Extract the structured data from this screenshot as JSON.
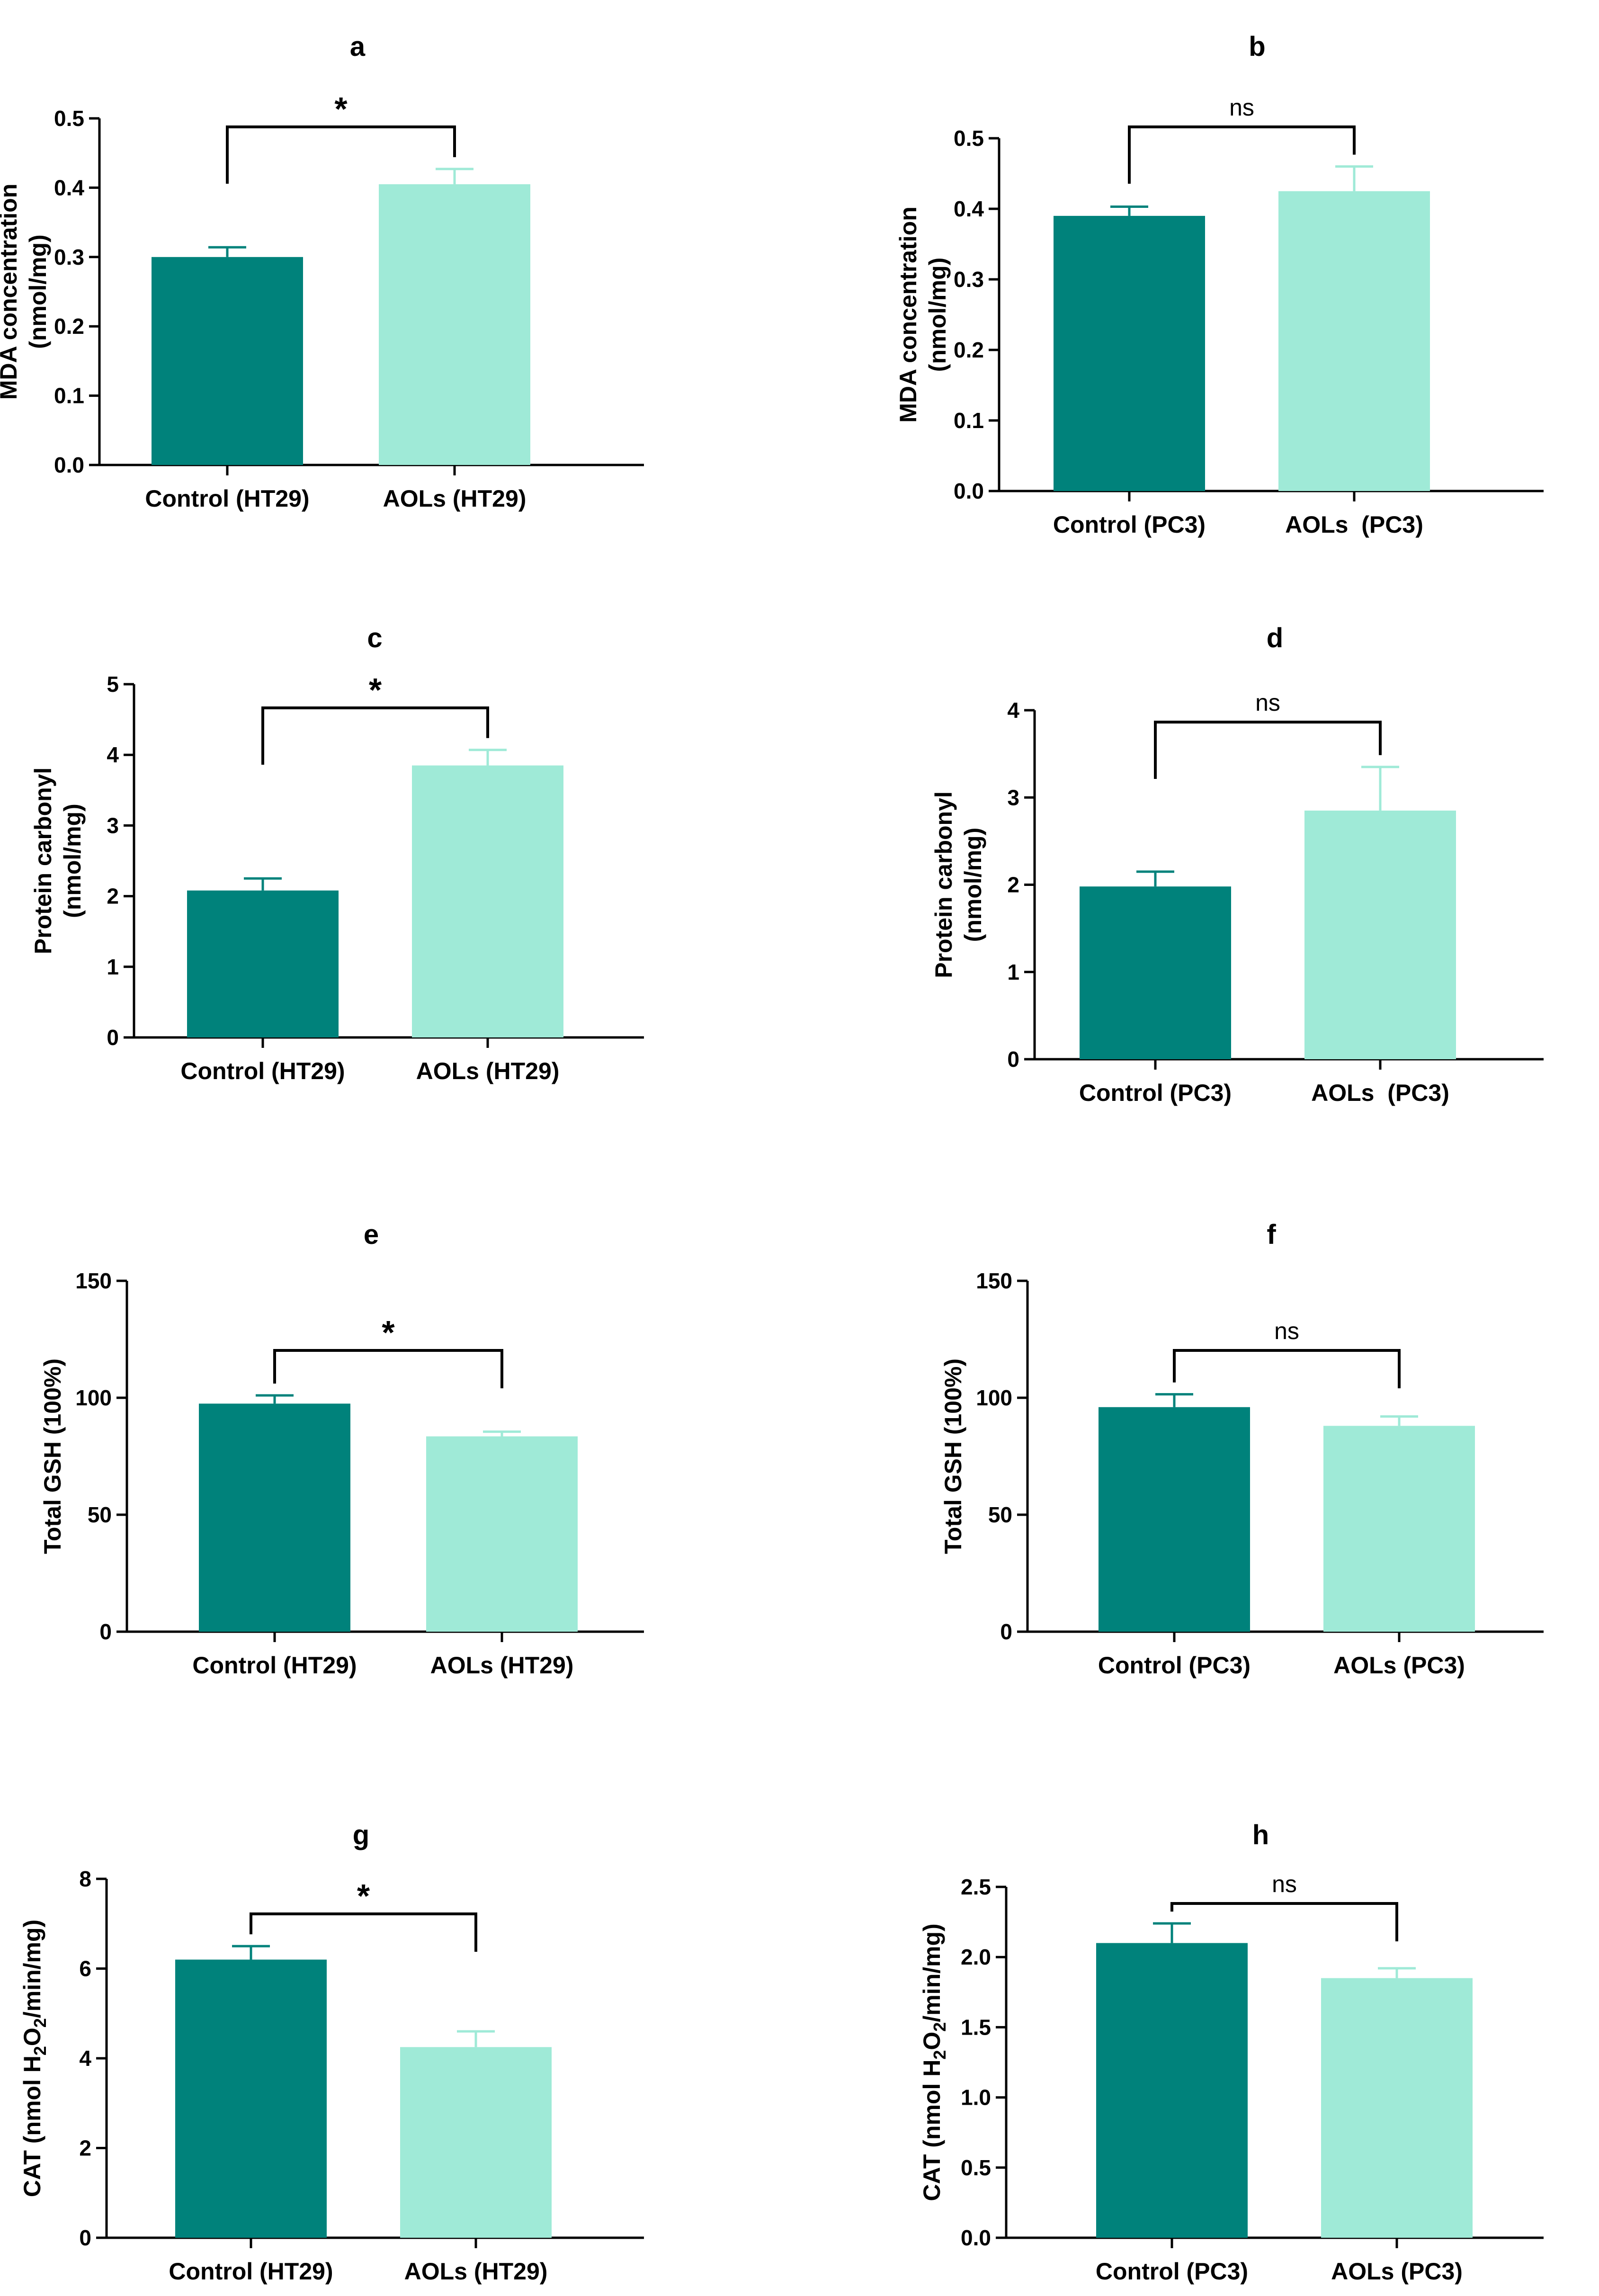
{
  "figure": {
    "background": "#ffffff",
    "colors": {
      "control": "#00827b",
      "aols": "#9fead7",
      "axis": "#000000"
    }
  },
  "chart_data": [
    {
      "panel": "a",
      "type": "bar",
      "categories": [
        "Control (HT29)",
        "AOLs (HT29)"
      ],
      "values": [
        0.3,
        0.405
      ],
      "errors": [
        0.014,
        0.022
      ],
      "ylabel": [
        "MDA concentration",
        "(nmol/mg)"
      ],
      "ylim": [
        0,
        0.5
      ],
      "yticks": [
        0,
        0.1,
        0.2,
        0.3,
        0.4,
        0.5
      ],
      "ytick_labels": [
        "0.0",
        "0.1",
        "0.2",
        "0.3",
        "0.4",
        "0.5"
      ],
      "significance": "*"
    },
    {
      "panel": "b",
      "type": "bar",
      "categories": [
        "Control (PC3)",
        "AOLs  (PC3)"
      ],
      "values": [
        0.39,
        0.425
      ],
      "errors": [
        0.013,
        0.035
      ],
      "ylabel": [
        "MDA concentration",
        "(nmol/mg)"
      ],
      "ylim": [
        0,
        0.5
      ],
      "yticks": [
        0,
        0.1,
        0.2,
        0.3,
        0.4,
        0.5
      ],
      "ytick_labels": [
        "0.0",
        "0.1",
        "0.2",
        "0.3",
        "0.4",
        "0.5"
      ],
      "significance": "ns"
    },
    {
      "panel": "c",
      "type": "bar",
      "categories": [
        "Control (HT29)",
        "AOLs (HT29)"
      ],
      "values": [
        2.08,
        3.85
      ],
      "errors": [
        0.17,
        0.22
      ],
      "ylabel": [
        "Protein carbonyl",
        "(nmol/mg)"
      ],
      "ylim": [
        0,
        5
      ],
      "yticks": [
        0,
        1,
        2,
        3,
        4,
        5
      ],
      "ytick_labels": [
        "0",
        "1",
        "2",
        "3",
        "4",
        "5"
      ],
      "significance": "*"
    },
    {
      "panel": "d",
      "type": "bar",
      "categories": [
        "Control (PC3)",
        "AOLs  (PC3)"
      ],
      "values": [
        1.98,
        2.85
      ],
      "errors": [
        0.17,
        0.5
      ],
      "ylabel": [
        "Protein carbonyl",
        "(nmol/mg)"
      ],
      "ylim": [
        0,
        4
      ],
      "yticks": [
        0,
        1,
        2,
        3,
        4
      ],
      "ytick_labels": [
        "0",
        "1",
        "2",
        "3",
        "4"
      ],
      "significance": "ns"
    },
    {
      "panel": "e",
      "type": "bar",
      "categories": [
        "Control (HT29)",
        "AOLs (HT29)"
      ],
      "values": [
        97.5,
        83.5
      ],
      "errors": [
        3.5,
        2.0
      ],
      "ylabel": [
        "Total GSH (100%)"
      ],
      "ylim": [
        0,
        150
      ],
      "yticks": [
        0,
        50,
        100,
        150
      ],
      "ytick_labels": [
        "0",
        "50",
        "100",
        "150"
      ],
      "significance": "*"
    },
    {
      "panel": "f",
      "type": "bar",
      "categories": [
        "Control (PC3)",
        "AOLs (PC3)"
      ],
      "values": [
        96,
        88
      ],
      "errors": [
        5.5,
        4.0
      ],
      "ylabel": [
        "Total GSH (100%)"
      ],
      "ylim": [
        0,
        150
      ],
      "yticks": [
        0,
        50,
        100,
        150
      ],
      "ytick_labels": [
        "0",
        "50",
        "100",
        "150"
      ],
      "significance": "ns"
    },
    {
      "panel": "g",
      "type": "bar",
      "categories": [
        "Control (HT29)",
        "AOLs (HT29)"
      ],
      "values": [
        6.2,
        4.25
      ],
      "errors": [
        0.3,
        0.35
      ],
      "ylabel": [
        "CAT (nmol H₂O₂/min/mg)"
      ],
      "ylim": [
        0,
        8
      ],
      "yticks": [
        0,
        2,
        4,
        6,
        8
      ],
      "ytick_labels": [
        "0",
        "2",
        "4",
        "6",
        "8"
      ],
      "significance": "*"
    },
    {
      "panel": "h",
      "type": "bar",
      "categories": [
        "Control (PC3)",
        "AOLs (PC3)"
      ],
      "values": [
        2.1,
        1.85
      ],
      "errors": [
        0.14,
        0.07
      ],
      "ylabel": [
        "CAT (nmol H₂O₂/min/mg)"
      ],
      "ylim": [
        0,
        2.5
      ],
      "yticks": [
        0,
        0.5,
        1.0,
        1.5,
        2.0,
        2.5
      ],
      "ytick_labels": [
        "0.0",
        "0.5",
        "1.0",
        "1.5",
        "2.0",
        "2.5"
      ],
      "significance": "ns"
    }
  ]
}
